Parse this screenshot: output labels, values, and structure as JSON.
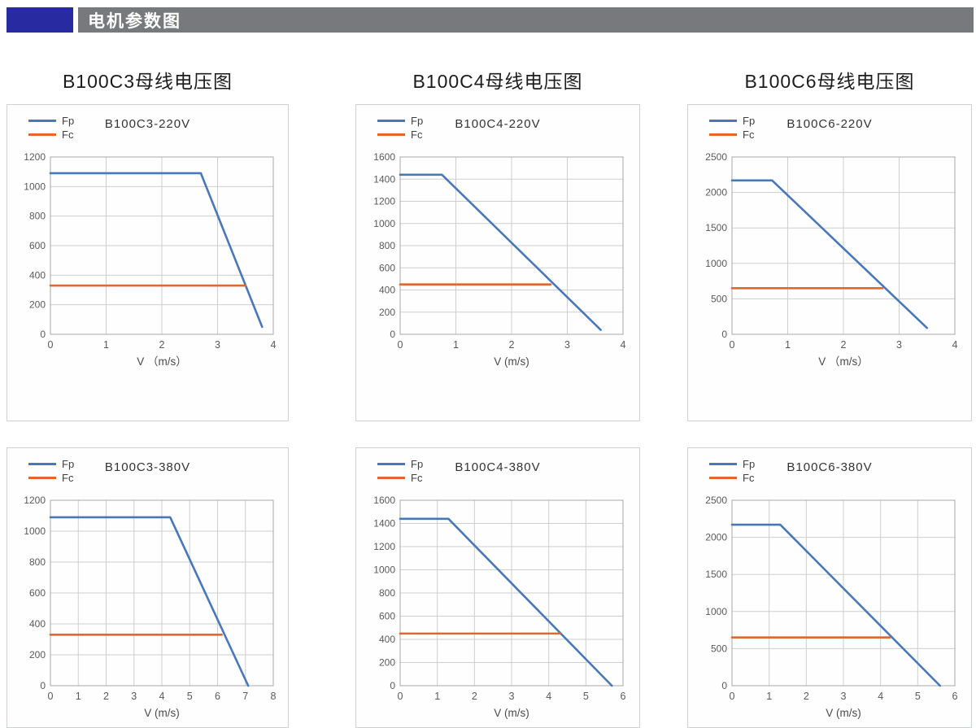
{
  "header": {
    "title": "电机参数图",
    "accent_color": "#272aa0",
    "bar_color": "#77797c"
  },
  "columns": [
    {
      "title": "B100C3母线电压图"
    },
    {
      "title": "B100C4母线电压图"
    },
    {
      "title": "B100C6母线电压图"
    }
  ],
  "colors": {
    "fp_line": "#4878b8",
    "fc_line": "#e2662e",
    "grid": "#cecece",
    "frame": "#a8a8a8",
    "tick_label": "#595959",
    "axis_label": "#4a4a4a"
  },
  "chart_data": [
    {
      "type": "line",
      "title": "B100C3-220V",
      "xlabel": "V （m/s）",
      "xlim": [
        0,
        4
      ],
      "xticks": [
        0,
        1,
        2,
        3,
        4
      ],
      "ylim": [
        0,
        1200
      ],
      "yticks": [
        0,
        200,
        400,
        600,
        800,
        1000,
        1200
      ],
      "grid": true,
      "legend_position": "top-left",
      "series": [
        {
          "name": "Fp",
          "color": "#4878b8",
          "points": [
            [
              0,
              1090
            ],
            [
              2.7,
              1090
            ],
            [
              3.8,
              50
            ]
          ]
        },
        {
          "name": "Fc",
          "color": "#e2662e",
          "points": [
            [
              0,
              330
            ],
            [
              3.5,
              330
            ]
          ]
        }
      ]
    },
    {
      "type": "line",
      "title": "B100C4-220V",
      "xlabel": "V (m/s)",
      "xlim": [
        0,
        4
      ],
      "xticks": [
        0,
        1,
        2,
        3,
        4
      ],
      "ylim": [
        0,
        1600
      ],
      "yticks": [
        0,
        200,
        400,
        600,
        800,
        1000,
        1200,
        1400,
        1600
      ],
      "grid": true,
      "legend_position": "top-left",
      "series": [
        {
          "name": "Fp",
          "color": "#4878b8",
          "points": [
            [
              0,
              1440
            ],
            [
              0.75,
              1440
            ],
            [
              3.6,
              40
            ]
          ]
        },
        {
          "name": "Fc",
          "color": "#e2662e",
          "points": [
            [
              0,
              450
            ],
            [
              2.7,
              450
            ]
          ]
        }
      ]
    },
    {
      "type": "line",
      "title": "B100C6-220V",
      "xlabel": "V （m/s）",
      "xlim": [
        0,
        4
      ],
      "xticks": [
        0,
        1,
        2,
        3,
        4
      ],
      "ylim": [
        0,
        2500
      ],
      "yticks": [
        0,
        500,
        1000,
        1500,
        2000,
        2500
      ],
      "grid": true,
      "legend_position": "top-left",
      "series": [
        {
          "name": "Fp",
          "color": "#4878b8",
          "points": [
            [
              0,
              2170
            ],
            [
              0.72,
              2170
            ],
            [
              3.5,
              90
            ]
          ]
        },
        {
          "name": "Fc",
          "color": "#e2662e",
          "points": [
            [
              0,
              650
            ],
            [
              2.7,
              650
            ]
          ]
        }
      ]
    },
    {
      "type": "line",
      "title": "B100C3-380V",
      "xlabel": "V (m/s)",
      "xlim": [
        0,
        8
      ],
      "xticks": [
        0,
        1,
        2,
        3,
        4,
        5,
        6,
        7,
        8
      ],
      "ylim": [
        0,
        1200
      ],
      "yticks": [
        0,
        200,
        400,
        600,
        800,
        1000,
        1200
      ],
      "grid": true,
      "legend_position": "top-left",
      "series": [
        {
          "name": "Fp",
          "color": "#4878b8",
          "points": [
            [
              0,
              1090
            ],
            [
              4.3,
              1090
            ],
            [
              7.1,
              0
            ]
          ]
        },
        {
          "name": "Fc",
          "color": "#e2662e",
          "points": [
            [
              0,
              330
            ],
            [
              6.15,
              330
            ]
          ]
        }
      ]
    },
    {
      "type": "line",
      "title": "B100C4-380V",
      "xlabel": "V (m/s)",
      "xlim": [
        0,
        6
      ],
      "xticks": [
        0,
        1,
        2,
        3,
        4,
        5,
        6
      ],
      "ylim": [
        0,
        1600
      ],
      "yticks": [
        0,
        200,
        400,
        600,
        800,
        1000,
        1200,
        1400,
        1600
      ],
      "grid": true,
      "legend_position": "top-left",
      "series": [
        {
          "name": "Fp",
          "color": "#4878b8",
          "points": [
            [
              0,
              1440
            ],
            [
              1.3,
              1440
            ],
            [
              5.7,
              0
            ]
          ]
        },
        {
          "name": "Fc",
          "color": "#e2662e",
          "points": [
            [
              0,
              450
            ],
            [
              4.3,
              450
            ]
          ]
        }
      ]
    },
    {
      "type": "line",
      "title": "B100C6-380V",
      "xlabel": "V (m/s)",
      "xlim": [
        0,
        6
      ],
      "xticks": [
        0,
        1,
        2,
        3,
        4,
        5,
        6
      ],
      "ylim": [
        0,
        2500
      ],
      "yticks": [
        0,
        500,
        1000,
        1500,
        2000,
        2500
      ],
      "grid": true,
      "legend_position": "top-left",
      "series": [
        {
          "name": "Fp",
          "color": "#4878b8",
          "points": [
            [
              0,
              2170
            ],
            [
              1.3,
              2170
            ],
            [
              5.6,
              0
            ]
          ]
        },
        {
          "name": "Fc",
          "color": "#e2662e",
          "points": [
            [
              0,
              650
            ],
            [
              4.25,
              650
            ]
          ]
        }
      ]
    }
  ]
}
